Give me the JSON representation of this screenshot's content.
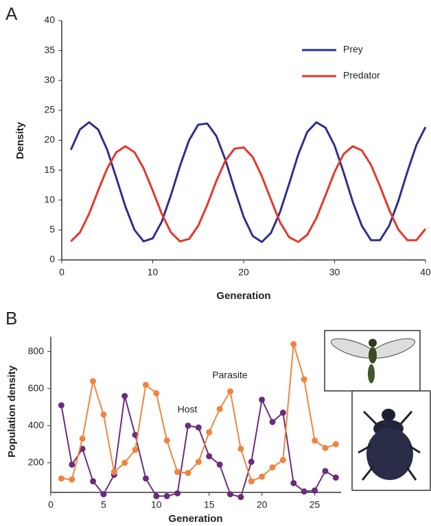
{
  "chart_data": [
    {
      "type": "line",
      "label": "A",
      "xlabel": "Generation",
      "ylabel": "Density",
      "x": [
        1,
        2,
        3,
        4,
        5,
        6,
        7,
        8,
        9,
        10,
        11,
        12,
        13,
        14,
        15,
        16,
        17,
        18,
        19,
        20,
        21,
        22,
        23,
        24,
        25,
        26,
        27,
        28,
        29,
        30,
        31,
        32,
        33,
        34,
        35,
        36,
        37,
        38,
        39,
        40
      ],
      "series": [
        {
          "name": "Prey",
          "color": "#2e2f8c",
          "values": [
            18.4,
            21.8,
            23,
            21.8,
            18.4,
            13.7,
            8.9,
            5.0,
            3.1,
            3.6,
            6.4,
            10.8,
            15.7,
            20.0,
            22.6,
            22.8,
            20.7,
            16.7,
            11.8,
            7.2,
            4.0,
            3.0,
            4.5,
            8.0,
            12.7,
            17.6,
            21.4,
            23.0,
            22.1,
            19.1,
            14.6,
            9.7,
            5.7,
            3.3,
            3.3,
            5.7,
            9.8,
            14.7,
            19.2,
            22.2
          ]
        },
        {
          "name": "Predator",
          "color": "#e8352b",
          "values": [
            3.1,
            4.6,
            7.7,
            11.6,
            15.3,
            18.0,
            19,
            18.0,
            15.3,
            11.6,
            7.7,
            4.6,
            3.1,
            3.5,
            5.7,
            9.2,
            13.2,
            16.6,
            18.6,
            18.8,
            17.2,
            14.0,
            10.1,
            6.3,
            3.8,
            3.0,
            4.2,
            7.0,
            10.8,
            14.7,
            17.7,
            19.0,
            18.3,
            15.9,
            12.3,
            8.4,
            5.1,
            3.3,
            3.3,
            5.2
          ]
        }
      ],
      "xlim": [
        0,
        40
      ],
      "xticks": [
        0,
        10,
        20,
        30,
        40
      ],
      "ylim": [
        0,
        40
      ],
      "yticks": [
        0,
        5,
        10,
        15,
        20,
        25,
        30,
        35,
        40
      ],
      "legend": "top-right",
      "markers": false,
      "grid": false
    },
    {
      "type": "line",
      "label": "B",
      "xlabel": "Generation",
      "ylabel": "Population density",
      "x": [
        1,
        2,
        3,
        4,
        5,
        6,
        7,
        8,
        9,
        10,
        11,
        12,
        13,
        14,
        15,
        16,
        17,
        18,
        19,
        20,
        21,
        22,
        23,
        24,
        25,
        26,
        27
      ],
      "series": [
        {
          "name": "Host",
          "color": "#6b2c7c",
          "values": [
            510,
            190,
            275,
            100,
            30,
            135,
            560,
            350,
            115,
            20,
            20,
            35,
            400,
            390,
            235,
            190,
            30,
            15,
            205,
            540,
            420,
            470,
            90,
            45,
            50,
            155,
            120
          ]
        },
        {
          "name": "Parasite",
          "color": "#f0843f",
          "values": [
            115,
            110,
            330,
            640,
            460,
            150,
            200,
            270,
            620,
            575,
            320,
            150,
            145,
            205,
            365,
            490,
            585,
            275,
            100,
            125,
            175,
            215,
            840,
            650,
            320,
            280,
            300
          ]
        }
      ],
      "xlim": [
        0,
        27.5
      ],
      "xticks": [
        0,
        5,
        10,
        15,
        20,
        25
      ],
      "ylim": [
        40,
        880
      ],
      "yticks": [
        200,
        400,
        600,
        800
      ],
      "legend": "inline",
      "markers": true,
      "grid": false
    }
  ]
}
